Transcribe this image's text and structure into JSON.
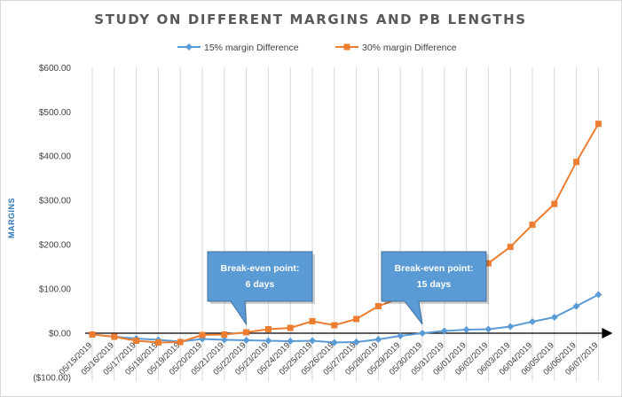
{
  "chart_data": {
    "type": "line",
    "title": "STUDY ON DIFFERENT MARGINS AND PB LENGTHS",
    "xlabel": "",
    "ylabel": "MARGINS",
    "ylim": [
      -100,
      600
    ],
    "yticks": [
      "($100.00)",
      "$0.00",
      "$100.00",
      "$200.00",
      "$300.00",
      "$400.00",
      "$500.00",
      "$600.00"
    ],
    "categories": [
      "05/15/2019",
      "05/16/2019",
      "05/17/2019",
      "05/18/2019",
      "05/19/2019",
      "05/20/2019",
      "05/21/2019",
      "05/22/2019",
      "05/23/2019",
      "05/24/2019",
      "05/25/2019",
      "05/26/2019",
      "05/27/2019",
      "05/28/2019",
      "05/29/2019",
      "05/30/2019",
      "05/31/2019",
      "06/01/2019",
      "06/02/2019",
      "06/03/2019",
      "06/04/2019",
      "06/05/2019",
      "06/06/2019",
      "06/07/2019"
    ],
    "series": [
      {
        "name": "15% margin Difference",
        "color": "#5b9bd5",
        "marker": "diamond",
        "values": [
          -3,
          -8,
          -12,
          -15,
          -19,
          -13,
          -15,
          -16,
          -17,
          -18,
          -17,
          -21,
          -20,
          -14,
          -6,
          0,
          5,
          8,
          9,
          15,
          26,
          36,
          61,
          87
        ]
      },
      {
        "name": "30% margin Difference",
        "color": "#ed7d31",
        "marker": "square",
        "values": [
          -3,
          -8,
          -17,
          -21,
          -20,
          -4,
          -3,
          2,
          9,
          12,
          27,
          18,
          32,
          61,
          80,
          110,
          130,
          155,
          158,
          195,
          245,
          292,
          387,
          473
        ]
      }
    ],
    "legend": "top-center",
    "grid": "vertical",
    "annotations": [
      {
        "line1": "Break-even point:",
        "line2": "6 days",
        "x": "05/22/2019",
        "y": 0
      },
      {
        "line1": "Break-even point:",
        "line2": "15 days",
        "x": "05/30/2019",
        "y": 0
      }
    ]
  }
}
